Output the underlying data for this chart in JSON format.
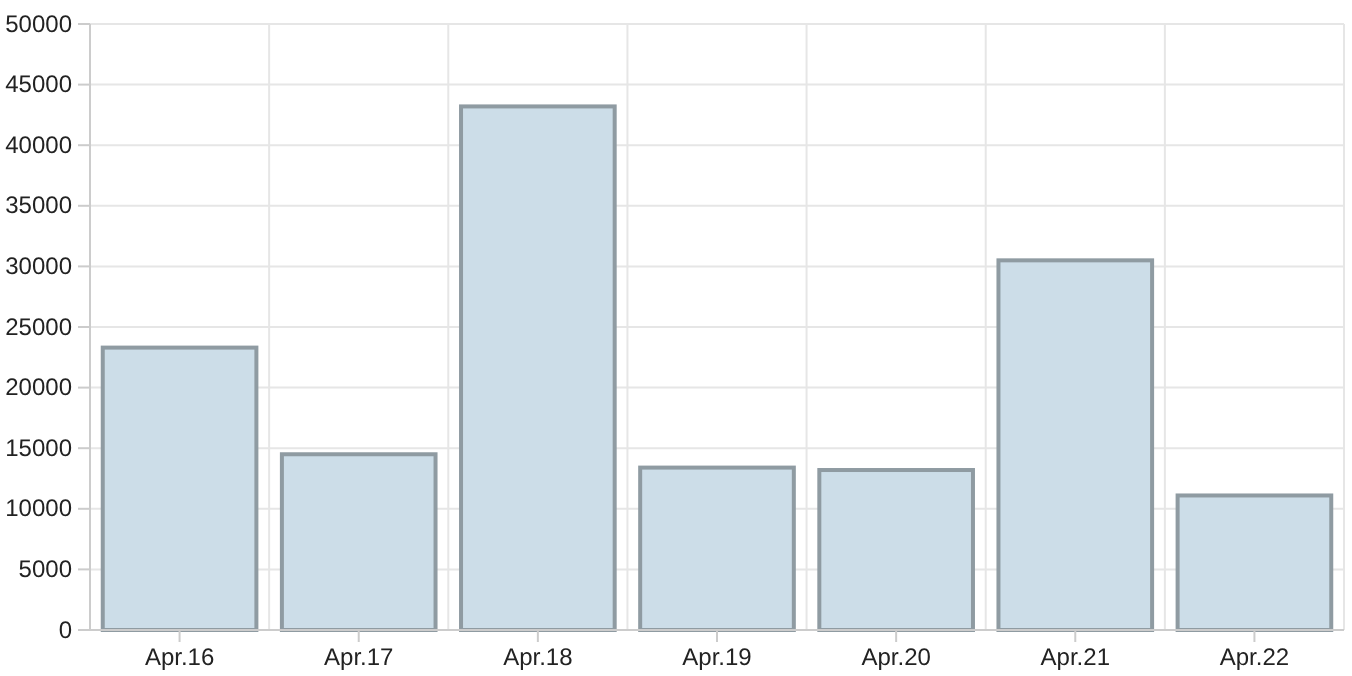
{
  "chart_data": {
    "type": "bar",
    "categories": [
      "Apr.16",
      "Apr.17",
      "Apr.18",
      "Apr.19",
      "Apr.20",
      "Apr.21",
      "Apr.22"
    ],
    "series": [
      {
        "color": "#ccdde8",
        "values": [
          23300,
          14500,
          43200,
          13400,
          13200,
          30500,
          11100
        ]
      }
    ],
    "ylim": [
      0,
      50000
    ],
    "yticks": [
      0,
      5000,
      10000,
      15000,
      20000,
      25000,
      30000,
      35000,
      40000,
      45000,
      50000
    ],
    "grid": true
  }
}
